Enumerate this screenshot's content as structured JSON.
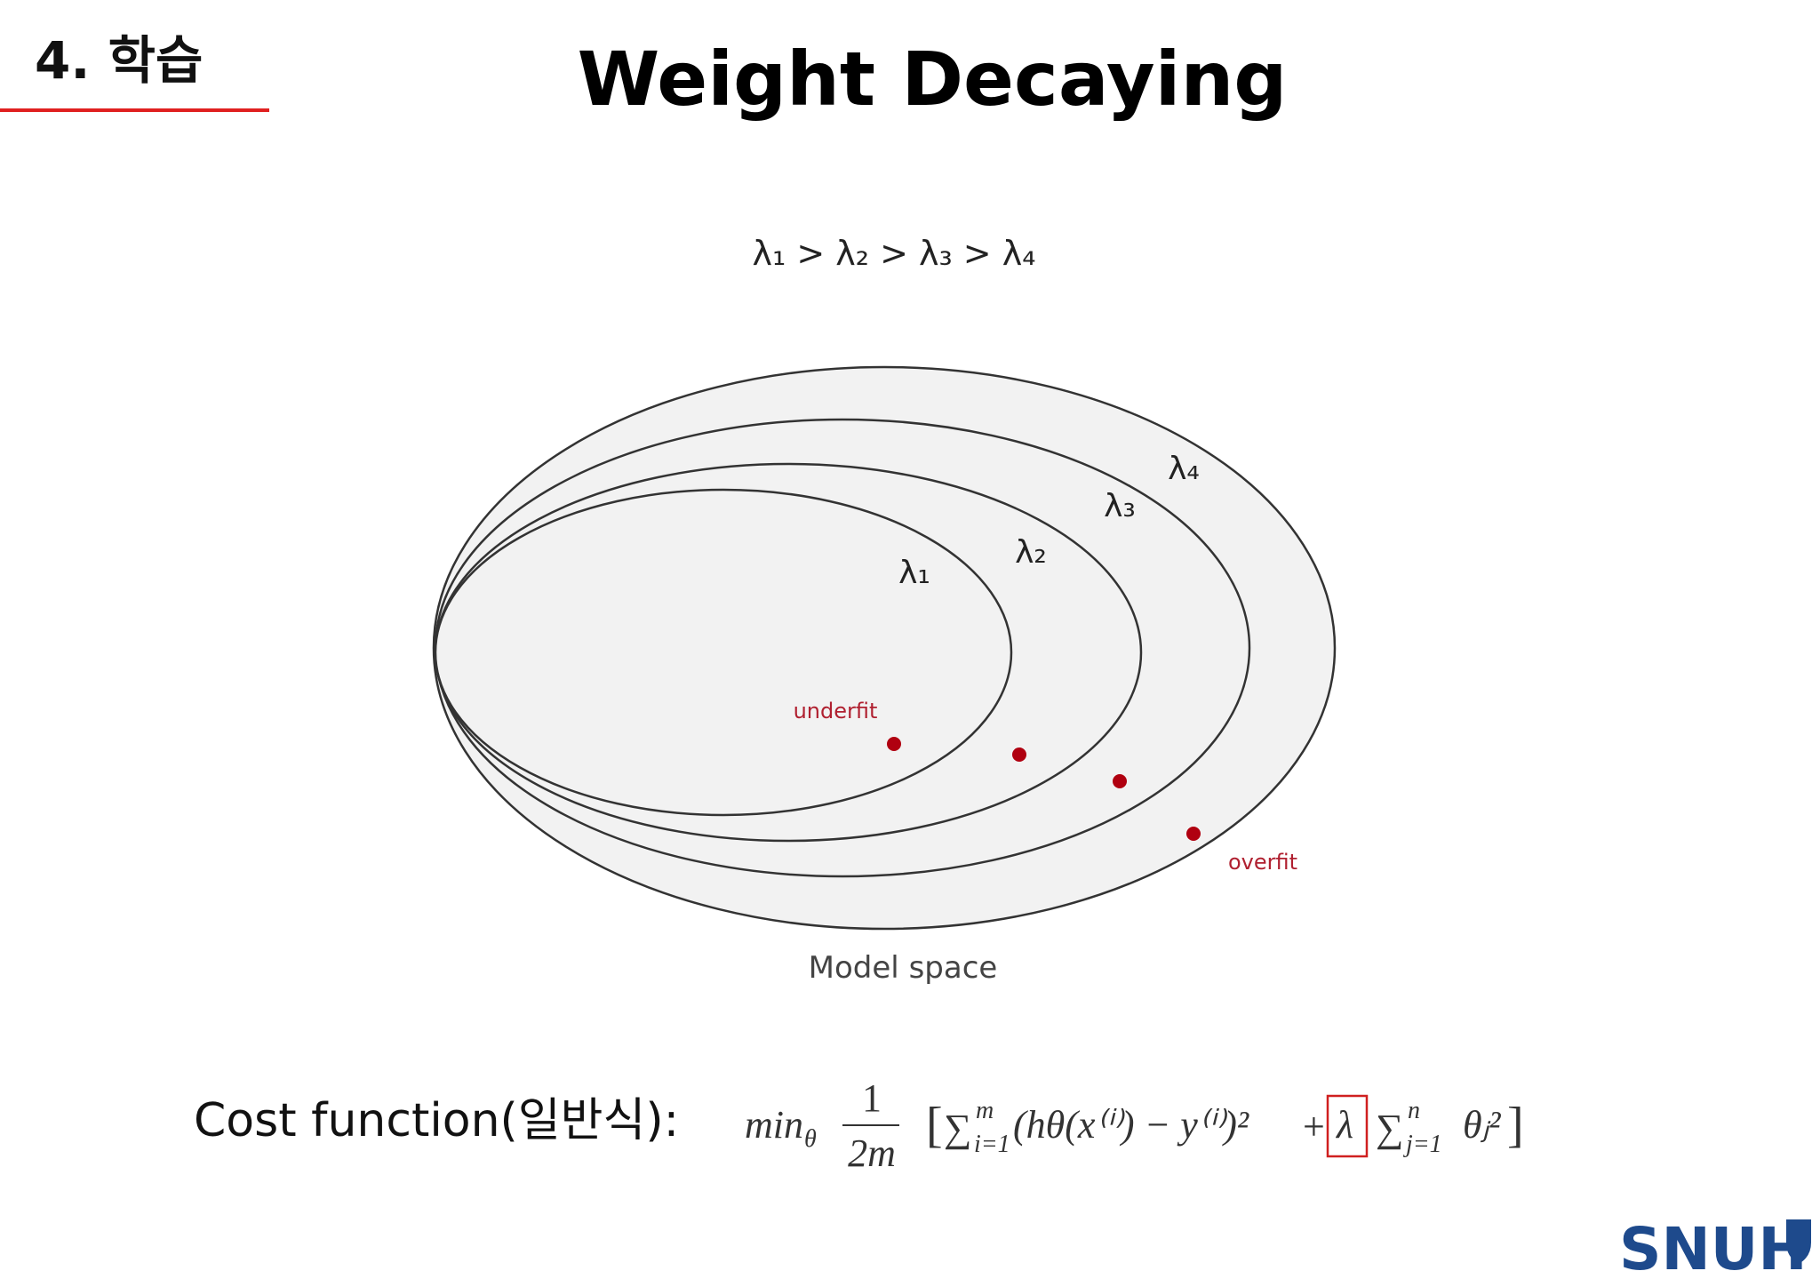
{
  "header": {
    "section": "4. 학습",
    "title": "Weight Decaying"
  },
  "diagram": {
    "ordering": "λ₁ > λ₂ > λ₃ > λ₄",
    "regions": [
      {
        "label": "λ₁"
      },
      {
        "label": "λ₂"
      },
      {
        "label": "λ₃"
      },
      {
        "label": "λ₄"
      }
    ],
    "underfit": "underfit",
    "overfit": "overfit",
    "caption": "Model space"
  },
  "cost": {
    "label": "Cost function(일반식):",
    "formula": {
      "operator": "min",
      "operator_sub": "θ",
      "numerator": "1",
      "denominator": "2m",
      "open": "[",
      "sum1": "∑",
      "sum1_sup": "m",
      "sum1_sub": "i=1",
      "term1": "(hθ(x⁽ⁱ⁾) − y⁽ⁱ⁾)²",
      "plus": "+",
      "lambda": "λ",
      "sum2": "∑",
      "sum2_sup": "n",
      "sum2_sub": "j=1",
      "term2": "θⱼ²",
      "close": "]"
    }
  },
  "logo": "SNUH"
}
